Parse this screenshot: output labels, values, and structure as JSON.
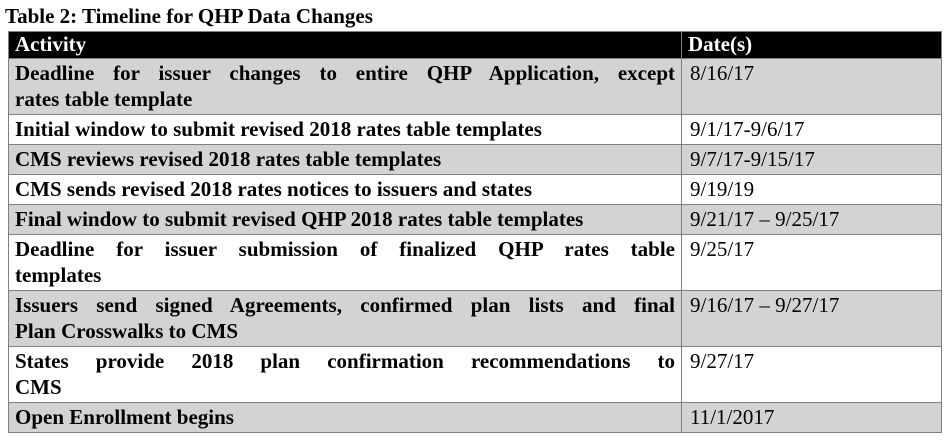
{
  "title": "Table 2: Timeline for QHP Data Changes",
  "table": {
    "headers": {
      "activity": "Activity",
      "date": "Date(s)"
    },
    "rows": [
      {
        "activity": "Deadline for issuer changes to entire QHP Application, except rates table template",
        "activity_lines": [
          "Deadline for issuer changes to entire QHP Application, except",
          "rates table template"
        ],
        "date": "8/16/17",
        "shaded": true
      },
      {
        "activity": "Initial window to submit revised 2018 rates table templates",
        "activity_lines": [
          "Initial window to submit revised 2018 rates table templates"
        ],
        "date": "9/1/17-9/6/17",
        "shaded": false
      },
      {
        "activity": "CMS reviews revised 2018 rates table templates",
        "activity_lines": [
          "CMS reviews revised 2018 rates table templates"
        ],
        "date": "9/7/17-9/15/17",
        "shaded": true
      },
      {
        "activity": "CMS sends revised 2018 rates notices to issuers and states",
        "activity_lines": [
          "CMS sends revised 2018 rates notices to issuers and states"
        ],
        "date": "9/19/19",
        "shaded": false
      },
      {
        "activity": "Final window to submit revised QHP 2018 rates table templates",
        "activity_lines": [
          "Final window to submit revised QHP 2018 rates table templates"
        ],
        "date": "9/21/17 – 9/25/17",
        "shaded": true
      },
      {
        "activity": "Deadline for issuer submission of finalized QHP rates table templates",
        "activity_lines": [
          "Deadline for issuer submission of finalized QHP rates table",
          "templates"
        ],
        "date": "9/25/17",
        "shaded": false
      },
      {
        "activity": "Issuers send signed Agreements, confirmed plan lists and final Plan Crosswalks to CMS",
        "activity_lines": [
          "Issuers send signed Agreements, confirmed plan lists and final",
          "Plan Crosswalks to CMS"
        ],
        "date": "9/16/17 – 9/27/17",
        "shaded": true
      },
      {
        "activity": "States provide 2018 plan confirmation recommendations to CMS",
        "activity_lines": [
          "States provide 2018 plan confirmation recommendations to",
          "CMS"
        ],
        "date": "9/27/17",
        "shaded": false
      },
      {
        "activity": "Open Enrollment begins",
        "activity_lines": [
          "Open Enrollment begins"
        ],
        "date": "11/1/2017",
        "shaded": true
      }
    ]
  },
  "colors": {
    "header_bg": "#000000",
    "header_text": "#ffffff",
    "shaded_row_bg": "#d3d3d3",
    "row_bg": "#ffffff",
    "border": "#808080",
    "text": "#000000"
  }
}
